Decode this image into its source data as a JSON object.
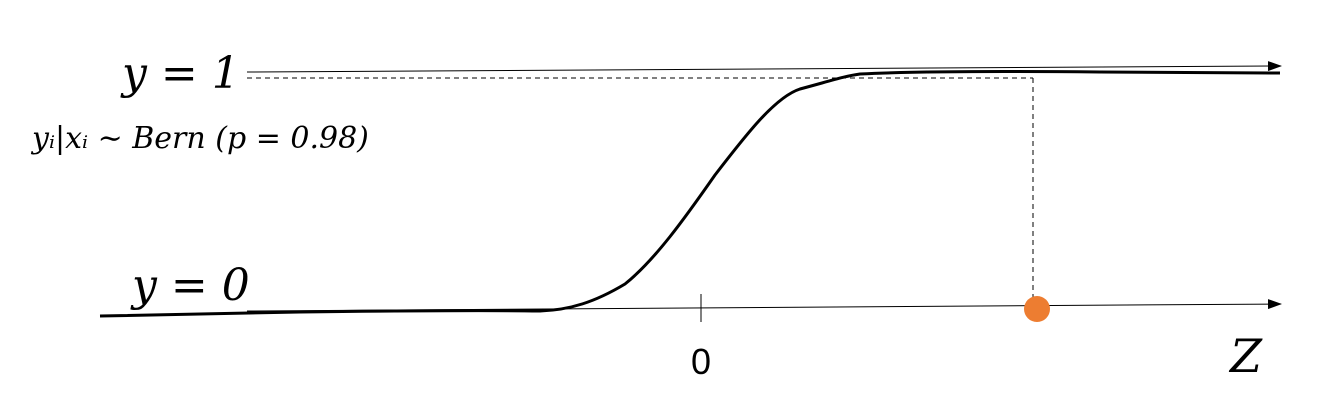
{
  "labels": {
    "y_one": "y = 1",
    "y_zero": "y = 0",
    "distribution": "yᵢ|xᵢ ∼ Bern (p = 0.98)",
    "origin_tick": "0",
    "axis_name": "Z"
  },
  "colors": {
    "curve": "#000000",
    "axis": "#000000",
    "guide": "#000000",
    "point": "#ED7D31"
  }
}
